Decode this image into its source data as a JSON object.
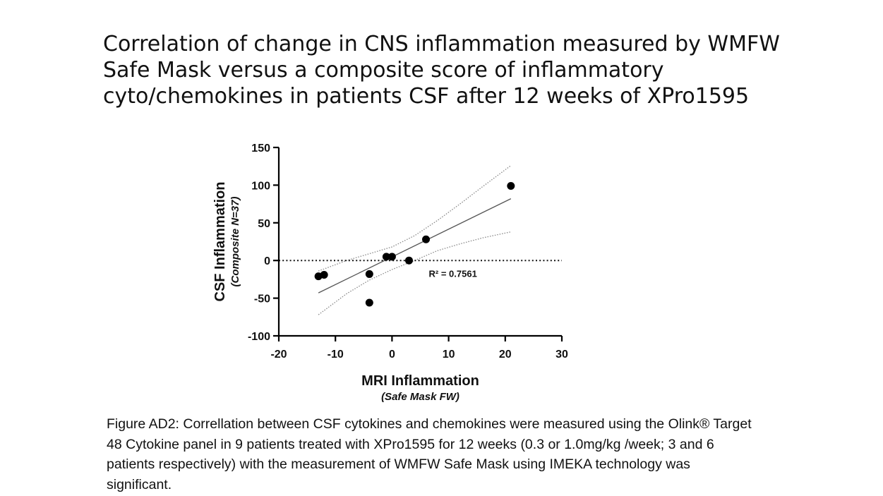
{
  "title_lines": [
    "Correlation of change in CNS inflammation measured by WMFW",
    "Safe Mask versus a composite score of inflammatory",
    "cyto/chemokines in patients CSF after 12 weeks of XPro1595"
  ],
  "chart_data": {
    "type": "scatter",
    "xlabel": "MRI Inflammation",
    "xlabel_sub": "(Safe Mask FW)",
    "ylabel": "CSF Inflammation",
    "ylabel_sub": "(Composite N=37)",
    "xlim": [
      -20,
      30
    ],
    "ylim": [
      -100,
      150
    ],
    "x_ticks": [
      -20,
      -10,
      0,
      10,
      20,
      30
    ],
    "x_tick_labels": [
      "-20",
      "-10",
      "0",
      "10",
      "20",
      "30"
    ],
    "y_ticks": [
      -100,
      -50,
      0,
      50,
      100,
      150
    ],
    "y_tick_labels": [
      "-100",
      "-50",
      "0",
      "50",
      "100",
      "150"
    ],
    "points": [
      {
        "x": -13,
        "y": -21
      },
      {
        "x": -12,
        "y": -19
      },
      {
        "x": -4,
        "y": -18
      },
      {
        "x": -4,
        "y": -56
      },
      {
        "x": -1,
        "y": 5
      },
      {
        "x": 0,
        "y": 5
      },
      {
        "x": 3,
        "y": 0
      },
      {
        "x": 6,
        "y": 28
      },
      {
        "x": 21,
        "y": 99
      }
    ],
    "fit_line": {
      "x": [
        -13,
        21
      ],
      "y": [
        -43,
        82
      ]
    },
    "ci_upper": {
      "x": [
        -13,
        -8,
        -4,
        0,
        4,
        8,
        12,
        16,
        21
      ],
      "y": [
        -14,
        0,
        9,
        18,
        33,
        53,
        75,
        98,
        126
      ]
    },
    "ci_lower": {
      "x": [
        -13,
        -8,
        -4,
        0,
        4,
        8,
        12,
        16,
        21
      ],
      "y": [
        -72,
        -44,
        -26,
        -12,
        0,
        13,
        22,
        30,
        38
      ]
    },
    "reference_line_y": 0,
    "reference_line_x_range": [
      -20,
      30
    ],
    "annotation": {
      "text": "R² = 0.7561",
      "x": 6.5,
      "y": -17
    },
    "colors": {
      "points": "#000000",
      "fit": "#555555",
      "ci": "#888888",
      "axes": "#000000"
    }
  },
  "caption_lines": [
    "Figure AD2: Correllation  between CSF cytokines and chemokines were measured using the Olink® Target",
    "48 Cytokine panel in 9 patients treated with XPro1595 for  12 weeks (0.3 or 1.0mg/kg /week; 3 and 6",
    "patients respectively) with the measurement of WMFW Safe Mask using IMEKA technology was",
    "significant."
  ]
}
